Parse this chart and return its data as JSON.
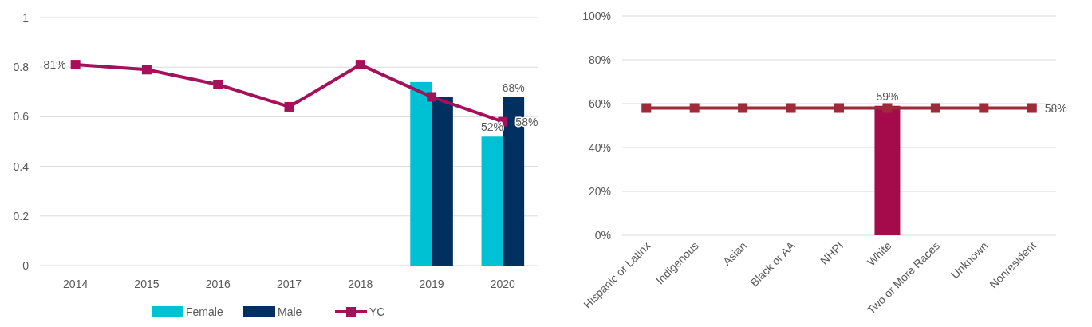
{
  "chart_data": [
    {
      "type": "bar",
      "categories": [
        "2014",
        "2015",
        "2016",
        "2017",
        "2018",
        "2019",
        "2020"
      ],
      "ylim": [
        0,
        1
      ],
      "yticks": [
        0,
        0.2,
        0.4,
        0.6,
        0.8,
        1
      ],
      "grid": "y",
      "legend": "bottom",
      "marker": "square",
      "line_style": "solid",
      "series": [
        {
          "name": "Female",
          "color": "#00c0d4",
          "values": [
            null,
            null,
            null,
            null,
            null,
            0.74,
            0.52
          ],
          "value_labels": [
            null,
            null,
            null,
            null,
            null,
            null,
            "52%"
          ]
        },
        {
          "name": "Male",
          "color": "#003060",
          "values": [
            null,
            null,
            null,
            null,
            null,
            0.68,
            0.68
          ],
          "value_labels": [
            null,
            null,
            null,
            null,
            null,
            null,
            "68%"
          ]
        },
        {
          "name": "YC",
          "type": "line",
          "color": "#a5105a",
          "values": [
            0.81,
            0.79,
            0.73,
            0.64,
            0.81,
            0.68,
            0.58
          ],
          "value_labels": [
            "81%",
            null,
            null,
            null,
            null,
            null,
            "58%"
          ]
        }
      ]
    },
    {
      "type": "bar",
      "categories": [
        "Hispanic or Latinx",
        "Indigenous",
        "Asian",
        "Black or AA",
        "NHPI",
        "White",
        "Two or More Races",
        "Unknown",
        "Nonresident"
      ],
      "ylim": [
        0,
        1
      ],
      "yticks": [
        {
          "value": 0,
          "label": "0%"
        },
        {
          "value": 0.2,
          "label": "20%"
        },
        {
          "value": 0.4,
          "label": "40%"
        },
        {
          "value": 0.6,
          "label": "60%"
        },
        {
          "value": 0.8,
          "label": "80%"
        },
        {
          "value": 1,
          "label": "100%"
        }
      ],
      "grid": "y",
      "marker": "square",
      "line_style": "solid",
      "series": [
        {
          "color": "#a50a4a",
          "values": [
            null,
            null,
            null,
            null,
            null,
            0.59,
            null,
            null,
            null
          ],
          "value_labels": [
            null,
            null,
            null,
            null,
            null,
            "59%",
            null,
            null,
            null
          ]
        },
        {
          "type": "line",
          "color": "#9e2a3a",
          "values": [
            0.58,
            0.58,
            0.58,
            0.58,
            0.58,
            0.58,
            0.58,
            0.58,
            0.58
          ],
          "value_labels": [
            null,
            null,
            null,
            null,
            null,
            null,
            null,
            null,
            "58%"
          ]
        }
      ]
    }
  ]
}
